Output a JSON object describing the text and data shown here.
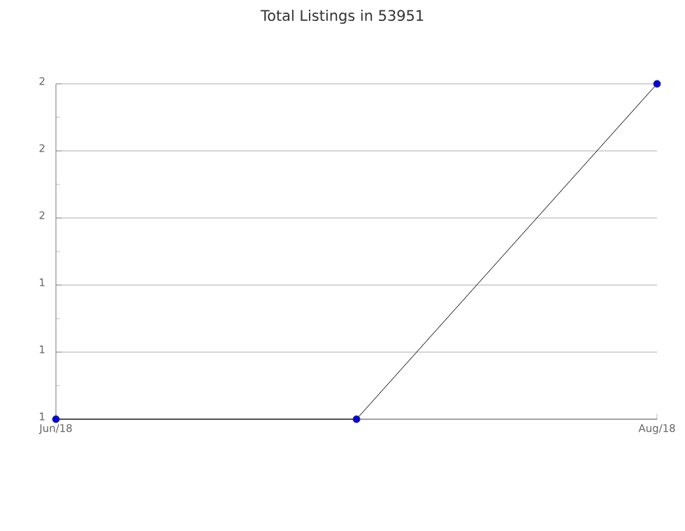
{
  "chart_data": {
    "type": "line",
    "title": "Total Listings in 53951",
    "categories": [
      "Jun/18",
      null,
      "Aug/18"
    ],
    "series": [
      {
        "color": "#0000ee",
        "values": [
          1,
          1,
          2
        ]
      }
    ],
    "ylim": [
      1,
      2
    ],
    "yticks": [
      {
        "value": 1,
        "label": "1"
      },
      {
        "value": 1.2,
        "label": "1"
      },
      {
        "value": 1.4,
        "label": "1"
      },
      {
        "value": 1.6,
        "label": "2"
      },
      {
        "value": 1.8,
        "label": "2"
      },
      {
        "value": 2,
        "label": "2"
      }
    ],
    "grid": "y",
    "marker": "circle",
    "line_style": "solid"
  }
}
